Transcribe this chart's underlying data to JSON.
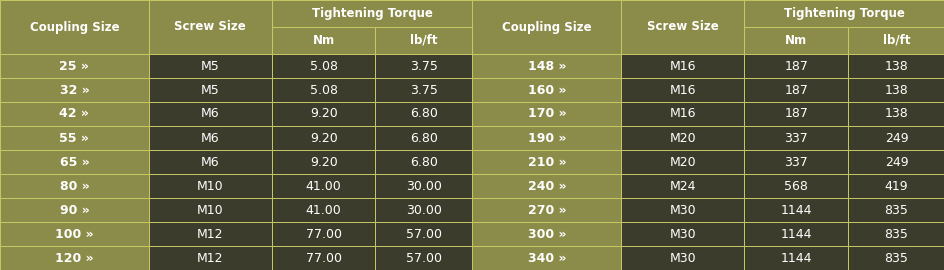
{
  "header_bg": "#8b8b4a",
  "header_text_color": "#ffffff",
  "row_bg_dark": "#3c3c2c",
  "row_bg_olive": "#8b8b4a",
  "row_text_color": "#ffffff",
  "border_color": "#c8c864",
  "rows": [
    [
      "25 »",
      "M5",
      "5.08",
      "3.75",
      "148 »",
      "M16",
      "187",
      "138"
    ],
    [
      "32 »",
      "M5",
      "5.08",
      "3.75",
      "160 »",
      "M16",
      "187",
      "138"
    ],
    [
      "42 »",
      "M6",
      "9.20",
      "6.80",
      "170 »",
      "M16",
      "187",
      "138"
    ],
    [
      "55 »",
      "M6",
      "9.20",
      "6.80",
      "190 »",
      "M20",
      "337",
      "249"
    ],
    [
      "65 »",
      "M6",
      "9.20",
      "6.80",
      "210 »",
      "M20",
      "337",
      "249"
    ],
    [
      "80 »",
      "M10",
      "41.00",
      "30.00",
      "240 »",
      "M24",
      "568",
      "419"
    ],
    [
      "90 »",
      "M10",
      "41.00",
      "30.00",
      "270 »",
      "M30",
      "1144",
      "835"
    ],
    [
      "100 »",
      "M12",
      "77.00",
      "57.00",
      "300 »",
      "M30",
      "1144",
      "835"
    ],
    [
      "120 »",
      "M12",
      "77.00",
      "57.00",
      "340 »",
      "M30",
      "1144",
      "835"
    ]
  ],
  "n_data_rows": 9,
  "header_font_size": 8.5,
  "cell_font_size": 9.0,
  "col_widths_raw": [
    1.15,
    0.95,
    0.8,
    0.75,
    1.15,
    0.95,
    0.8,
    0.75
  ]
}
